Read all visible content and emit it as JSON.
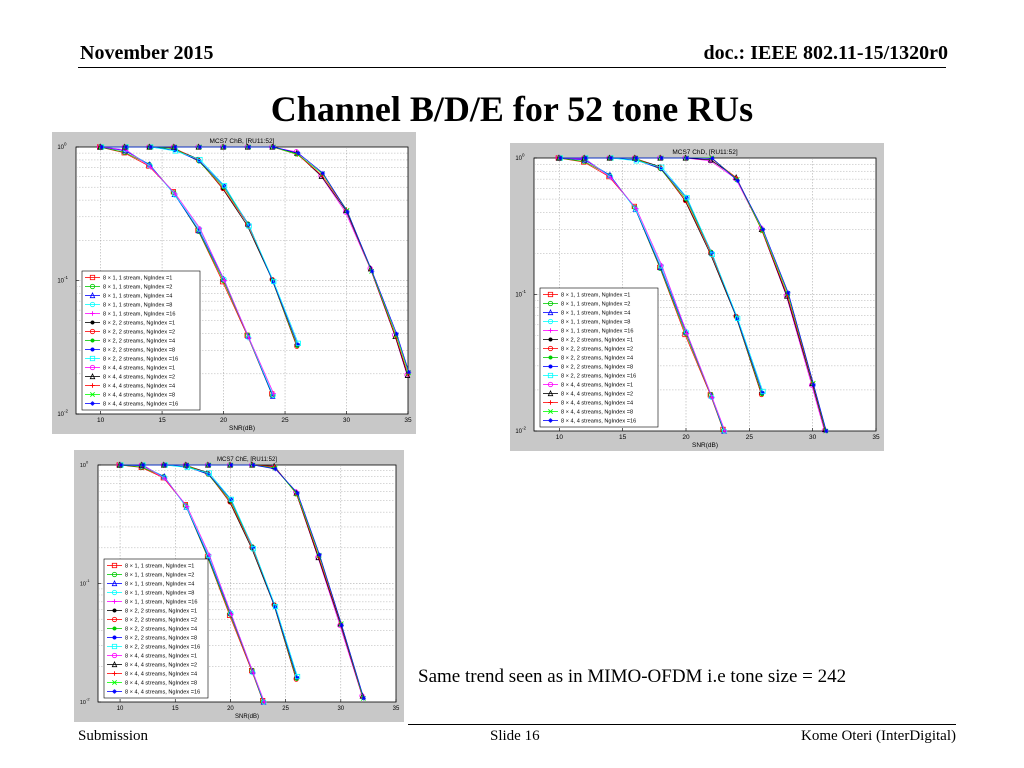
{
  "header": {
    "date": "November 2015",
    "doc": "doc.: IEEE 802.11-15/1320r0"
  },
  "slide_title": "Channel B/D/E for 52 tone RUs",
  "note": "Same trend seen as in MIMO-OFDM i.e tone size = 242",
  "footer": {
    "left": "Submission",
    "center": "Slide 16",
    "right": "Kome Oteri (InterDigital)"
  },
  "legend_entries": [
    {
      "label": "8 × 1, 1 stream, NgIndex =1",
      "color": "#ff0000",
      "marker": "square"
    },
    {
      "label": "8 × 1, 1 stream, NgIndex =2",
      "color": "#00cc00",
      "marker": "circle"
    },
    {
      "label": "8 × 1, 1 stream, NgIndex =4",
      "color": "#0000ff",
      "marker": "triangle"
    },
    {
      "label": "8 × 1, 1 stream, NgIndex =8",
      "color": "#00ffff",
      "marker": "circle"
    },
    {
      "label": "8 × 1, 1 stream, NgIndex =16",
      "color": "#ff00ff",
      "marker": "plus"
    },
    {
      "label": "8 × 2, 2 streams, NgIndex =1",
      "color": "#000000",
      "marker": "dot"
    },
    {
      "label": "8 × 2, 2 streams, NgIndex =2",
      "color": "#ff0000",
      "marker": "circle"
    },
    {
      "label": "8 × 2, 2 streams, NgIndex =4",
      "color": "#00cc00",
      "marker": "dot"
    },
    {
      "label": "8 × 2, 2 streams, NgIndex =8",
      "color": "#0000ff",
      "marker": "dot"
    },
    {
      "label": "8 × 2, 2 streams, NgIndex =16",
      "color": "#00ffff",
      "marker": "square"
    },
    {
      "label": "8 × 4, 4 streams, NgIndex =1",
      "color": "#ff00ff",
      "marker": "circle"
    },
    {
      "label": "8 × 4, 4 streams, NgIndex =2",
      "color": "#000000",
      "marker": "triangle"
    },
    {
      "label": "8 × 4, 4 streams, NgIndex =4",
      "color": "#ff0000",
      "marker": "plus"
    },
    {
      "label": "8 × 4, 4 streams, NgIndex =8",
      "color": "#00ff00",
      "marker": "x"
    },
    {
      "label": "8 × 4, 4 streams, NgIndex =16",
      "color": "#0000ff",
      "marker": "star"
    }
  ],
  "chart_data": [
    {
      "type": "line",
      "title": "MCS7 ChB, [RU11:52]",
      "xlabel": "SNR(dB)",
      "ylabel": "",
      "xlim": [
        8,
        35
      ],
      "ylim": [
        0.01,
        1
      ],
      "yscale": "log",
      "grid": true,
      "legend_position": "bottom-left",
      "x_ticks": [
        "10",
        "15",
        "20",
        "25",
        "30",
        "35"
      ],
      "y_ticks": [
        "10^0",
        "10^-1",
        "10^-2"
      ],
      "groups": [
        {
          "streams": "1 stream",
          "x": [
            10,
            12,
            14,
            16,
            18,
            20,
            22,
            24
          ],
          "y": [
            1,
            0.93,
            0.72,
            0.45,
            0.24,
            0.1,
            0.038,
            0.014
          ]
        },
        {
          "streams": "2 streams",
          "x": [
            10,
            12,
            14,
            16,
            18,
            20,
            22,
            24,
            26
          ],
          "y": [
            1,
            1,
            1,
            0.96,
            0.8,
            0.5,
            0.26,
            0.1,
            0.033
          ]
        },
        {
          "streams": "4 streams",
          "x": [
            10,
            12,
            14,
            16,
            18,
            20,
            22,
            24,
            26,
            28,
            30,
            32,
            34,
            35
          ],
          "y": [
            1,
            1,
            1,
            1,
            1,
            1,
            1,
            1,
            0.9,
            0.62,
            0.33,
            0.12,
            0.039,
            0.02
          ]
        }
      ]
    },
    {
      "type": "line",
      "title": "MCS7 ChD, [RU11:52]",
      "xlabel": "SNR(dB)",
      "ylabel": "",
      "xlim": [
        8,
        35
      ],
      "ylim": [
        0.01,
        1
      ],
      "yscale": "log",
      "grid": true,
      "legend_position": "bottom-left",
      "x_ticks": [
        "10",
        "15",
        "20",
        "25",
        "30",
        "35"
      ],
      "y_ticks": [
        "10^0",
        "10^-1",
        "10^-2"
      ],
      "groups": [
        {
          "streams": "1 stream",
          "x": [
            10,
            12,
            14,
            16,
            18,
            20,
            22,
            23
          ],
          "y": [
            1,
            0.96,
            0.73,
            0.43,
            0.16,
            0.052,
            0.018,
            0.01
          ]
        },
        {
          "streams": "2 streams",
          "x": [
            10,
            12,
            14,
            16,
            18,
            20,
            22,
            24,
            26
          ],
          "y": [
            1,
            1,
            1,
            0.98,
            0.85,
            0.5,
            0.2,
            0.068,
            0.019
          ]
        },
        {
          "streams": "4 streams",
          "x": [
            10,
            12,
            14,
            16,
            18,
            20,
            22,
            24,
            26,
            28,
            30,
            31
          ],
          "y": [
            1,
            1,
            1,
            1,
            1,
            1,
            0.98,
            0.7,
            0.3,
            0.1,
            0.022,
            0.01
          ]
        }
      ]
    },
    {
      "type": "line",
      "title": "MCS7 ChE, [RU11:52]",
      "xlabel": "SNR(dB)",
      "ylabel": "",
      "xlim": [
        8,
        35
      ],
      "ylim": [
        0.01,
        1
      ],
      "yscale": "log",
      "grid": true,
      "legend_position": "bottom-left",
      "x_ticks": [
        "10",
        "15",
        "20",
        "25",
        "30",
        "35"
      ],
      "y_ticks": [
        "10^0",
        "10^-1",
        "10^-2"
      ],
      "groups": [
        {
          "streams": "1 stream",
          "x": [
            10,
            12,
            14,
            16,
            18,
            20,
            22,
            23
          ],
          "y": [
            1,
            0.98,
            0.78,
            0.45,
            0.17,
            0.055,
            0.018,
            0.01
          ]
        },
        {
          "streams": "2 streams",
          "x": [
            10,
            12,
            14,
            16,
            18,
            20,
            22,
            24,
            26
          ],
          "y": [
            1,
            1,
            1,
            0.98,
            0.85,
            0.5,
            0.2,
            0.065,
            0.016
          ]
        },
        {
          "streams": "4 streams",
          "x": [
            10,
            12,
            14,
            16,
            18,
            20,
            22,
            24,
            26,
            28,
            30,
            32
          ],
          "y": [
            1,
            1,
            1,
            1,
            1,
            1,
            1,
            0.95,
            0.58,
            0.17,
            0.045,
            0.011
          ]
        }
      ]
    }
  ]
}
